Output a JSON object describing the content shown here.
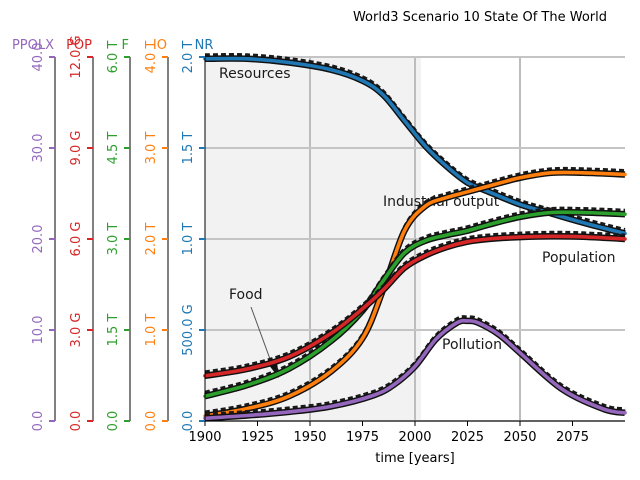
{
  "chart_data": {
    "type": "line",
    "title": "World3 Scenario 10 State Of The World",
    "xlabel": "time [years]",
    "xlim": [
      1900,
      2100
    ],
    "x_ticks": [
      "1900",
      "1925",
      "1950",
      "1975",
      "2000",
      "2025",
      "2050",
      "2075"
    ],
    "grid": true,
    "axes": [
      {
        "name": "PPOLX",
        "color": "#9467bd",
        "ylim": [
          0,
          40
        ],
        "ticks": [
          "0.0",
          "10.0",
          "20.0",
          "30.0",
          "40.0"
        ]
      },
      {
        "name": "POP",
        "color": "#d62728",
        "ylim": [
          0,
          13.3
        ],
        "ticks": [
          "0.0",
          "3.0 G",
          "6.0 G",
          "9.0 G",
          "12.0 G"
        ]
      },
      {
        "name": "F",
        "color": "#2ca02c",
        "ylim": [
          0,
          6.6
        ],
        "ticks": [
          "0.0",
          "1.5 T",
          "3.0 T",
          "4.5 T",
          "6.0 T"
        ]
      },
      {
        "name": "IO",
        "color": "#ff7f0e",
        "ylim": [
          0,
          4.4
        ],
        "ticks": [
          "0.0",
          "1.0 T",
          "2.0 T",
          "3.0 T",
          "4.0 T"
        ]
      },
      {
        "name": "NR",
        "color": "#1f77b4",
        "ylim": [
          0,
          2.0
        ],
        "ticks": [
          "0.0",
          "500.0 G",
          "1.0 T",
          "1.5 T",
          "2.0 T"
        ]
      }
    ],
    "annotations": [
      "Resources",
      "Industrial output",
      "Population",
      "Food",
      "Pollution"
    ],
    "series": [
      {
        "name": "NR",
        "color": "#1f77b4",
        "x": [
          1900,
          1920,
          1940,
          1960,
          1975,
          1985,
          1995,
          2005,
          2015,
          2025,
          2035,
          2050,
          2065,
          2080,
          2100
        ],
        "y": [
          1.99,
          1.99,
          1.97,
          1.93,
          1.87,
          1.79,
          1.65,
          1.51,
          1.4,
          1.31,
          1.26,
          1.19,
          1.14,
          1.09,
          1.03
        ]
      },
      {
        "name": "IO",
        "color": "#ff7f0e",
        "x": [
          1900,
          1920,
          1940,
          1960,
          1975,
          1985,
          1995,
          2005,
          2015,
          2025,
          2035,
          2050,
          2065,
          2080,
          2100
        ],
        "y": [
          0.06,
          0.15,
          0.3,
          0.6,
          1.0,
          1.6,
          2.3,
          2.6,
          2.7,
          2.77,
          2.84,
          2.94,
          3.0,
          3.0,
          2.98
        ]
      },
      {
        "name": "F",
        "color": "#2ca02c",
        "x": [
          1900,
          1920,
          1940,
          1960,
          1975,
          1985,
          1995,
          2005,
          2015,
          2025,
          2035,
          2050,
          2065,
          2080,
          2100
        ],
        "y": [
          0.45,
          0.65,
          0.95,
          1.45,
          2.0,
          2.55,
          3.05,
          3.27,
          3.37,
          3.45,
          3.56,
          3.7,
          3.78,
          3.78,
          3.75
        ]
      },
      {
        "name": "POP",
        "color": "#d62728",
        "x": [
          1900,
          1920,
          1940,
          1960,
          1975,
          1985,
          1995,
          2005,
          2015,
          2025,
          2035,
          2050,
          2065,
          2080,
          2100
        ],
        "y": [
          1.65,
          1.9,
          2.35,
          3.2,
          4.1,
          4.8,
          5.6,
          6.05,
          6.35,
          6.55,
          6.65,
          6.72,
          6.75,
          6.73,
          6.65
        ]
      },
      {
        "name": "PPOLX",
        "color": "#9467bd",
        "x": [
          1900,
          1920,
          1940,
          1960,
          1980,
          1990,
          2000,
          2010,
          2020,
          2025,
          2030,
          2040,
          2050,
          2070,
          2090,
          2100
        ],
        "y": [
          0.3,
          0.6,
          1.0,
          1.6,
          2.8,
          4.0,
          6.0,
          9.0,
          10.8,
          11.0,
          10.8,
          9.5,
          7.5,
          3.5,
          1.3,
          0.9
        ]
      }
    ]
  }
}
